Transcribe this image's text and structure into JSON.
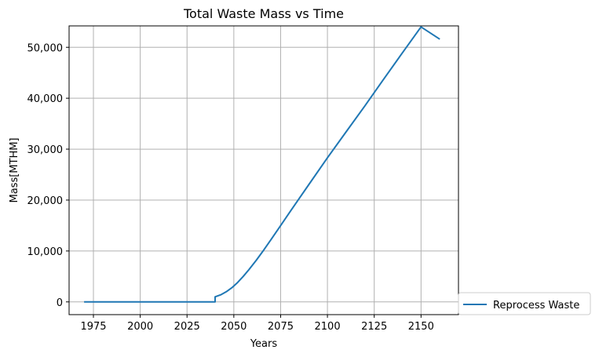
{
  "chart_data": {
    "type": "line",
    "title": "Total Waste Mass vs Time",
    "xlabel": "Years",
    "ylabel": "Mass[MTHM]",
    "xlim": [
      1962,
      2170
    ],
    "ylim": [
      -2500,
      54200
    ],
    "xticks": [
      1975,
      2000,
      2025,
      2050,
      2075,
      2100,
      2125,
      2150
    ],
    "yticks": [
      0,
      10000,
      20000,
      30000,
      40000,
      50000
    ],
    "ytick_labels": [
      "0",
      "10,000",
      "20,000",
      "30,000",
      "40,000",
      "50,000"
    ],
    "grid": true,
    "legend_position": "lower-right-outside",
    "series": [
      {
        "name": "Reprocess Waste",
        "color": "#1f77b4",
        "x": [
          1970,
          2000,
          2030,
          2040,
          2040,
          2043,
          2046,
          2049,
          2052,
          2055,
          2058,
          2062,
          2066,
          2070,
          2075,
          2080,
          2090,
          2100,
          2110,
          2120,
          2130,
          2140,
          2150,
          2160
        ],
        "y": [
          0,
          0,
          0,
          0,
          1000,
          1400,
          2000,
          2800,
          3800,
          5000,
          6300,
          8200,
          10200,
          12300,
          15000,
          17700,
          23000,
          28300,
          33400,
          38500,
          43700,
          48900,
          54000,
          51600
        ]
      }
    ]
  }
}
